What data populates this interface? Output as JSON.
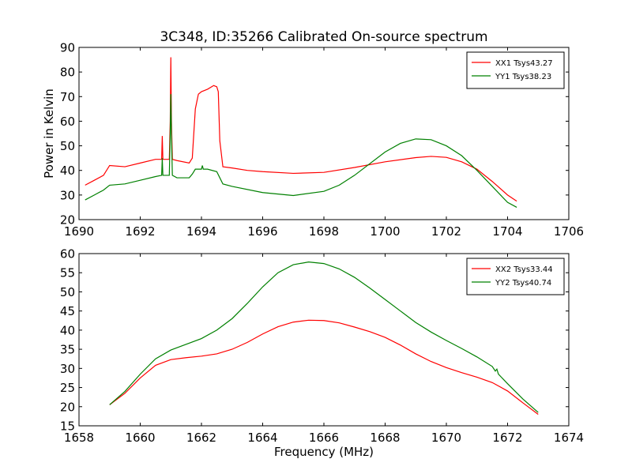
{
  "figure_title": "3C348, ID:35266 Calibrated On-source spectrum",
  "chart_data": [
    {
      "type": "line",
      "ylabel": "Power in Kelvin",
      "xlabel": "",
      "xlim": [
        1690,
        1706
      ],
      "ylim": [
        20,
        90
      ],
      "xticks": [
        1690,
        1692,
        1694,
        1696,
        1698,
        1700,
        1702,
        1704,
        1706
      ],
      "yticks": [
        20,
        30,
        40,
        50,
        60,
        70,
        80,
        90
      ],
      "legend_position": "top-right",
      "series": [
        {
          "name": "XX1 Tsys43.27",
          "color": "#ff0000",
          "x": [
            1690.2,
            1690.5,
            1690.8,
            1691.0,
            1691.5,
            1692.0,
            1692.5,
            1692.7,
            1692.72,
            1692.74,
            1692.8,
            1692.95,
            1692.98,
            1693.0,
            1693.02,
            1693.05,
            1693.2,
            1693.6,
            1693.7,
            1693.8,
            1693.9,
            1694.0,
            1694.2,
            1694.4,
            1694.5,
            1694.55,
            1694.6,
            1694.7,
            1695.0,
            1695.5,
            1696.0,
            1697.0,
            1698.0,
            1699.0,
            1700.0,
            1701.0,
            1701.5,
            1702.0,
            1702.5,
            1703.0,
            1703.5,
            1704.0,
            1704.3
          ],
          "y": [
            34,
            36,
            38,
            42,
            41.5,
            43,
            44.5,
            44.5,
            54,
            44.5,
            44.5,
            44.5,
            60,
            86,
            60,
            44.5,
            44,
            43,
            45,
            65,
            71,
            72,
            73,
            74.5,
            74,
            72,
            52,
            41.5,
            41,
            40,
            39.5,
            38.8,
            39.2,
            41.2,
            43.5,
            45.2,
            45.7,
            45.3,
            43.5,
            40.5,
            35.5,
            30,
            27.5
          ]
        },
        {
          "name": "YY1 Tsys38.23",
          "color": "#008000",
          "x": [
            1690.2,
            1690.5,
            1690.8,
            1691.0,
            1691.5,
            1692.0,
            1692.5,
            1692.7,
            1692.72,
            1692.74,
            1692.8,
            1692.95,
            1692.98,
            1693.0,
            1693.02,
            1693.05,
            1693.2,
            1693.6,
            1693.7,
            1693.8,
            1694.0,
            1694.03,
            1694.06,
            1694.2,
            1694.5,
            1694.6,
            1694.7,
            1695.0,
            1696.0,
            1697.0,
            1698.0,
            1698.5,
            1699.0,
            1700.0,
            1700.5,
            1701.0,
            1701.5,
            1702.0,
            1702.5,
            1703.0,
            1703.5,
            1704.0,
            1704.3
          ],
          "y": [
            28,
            30,
            32,
            34,
            34.5,
            36,
            37.5,
            38,
            45,
            38,
            38,
            38,
            55,
            71,
            55,
            38,
            37,
            37,
            38.5,
            40.5,
            40.5,
            42,
            40.5,
            40.5,
            39.5,
            37,
            34.5,
            33.5,
            31,
            29.8,
            31.5,
            34,
            38,
            47.5,
            51,
            52.8,
            52.5,
            50,
            46,
            40,
            33.5,
            27,
            25
          ]
        }
      ]
    },
    {
      "type": "line",
      "ylabel": "",
      "xlabel": "Frequency (MHz)",
      "xlim": [
        1658,
        1674
      ],
      "ylim": [
        15,
        60
      ],
      "xticks": [
        1658,
        1660,
        1662,
        1664,
        1666,
        1668,
        1670,
        1672,
        1674
      ],
      "yticks": [
        15,
        20,
        25,
        30,
        35,
        40,
        45,
        50,
        55,
        60
      ],
      "legend_position": "top-right",
      "series": [
        {
          "name": "XX2 Tsys33.44",
          "color": "#ff0000",
          "x": [
            1659.0,
            1659.5,
            1660.0,
            1660.5,
            1661.0,
            1661.5,
            1662.0,
            1662.5,
            1663.0,
            1663.5,
            1664.0,
            1664.5,
            1665.0,
            1665.5,
            1666.0,
            1666.5,
            1667.0,
            1667.5,
            1668.0,
            1668.5,
            1669.0,
            1669.5,
            1670.0,
            1670.5,
            1671.0,
            1671.5,
            1672.0,
            1672.5,
            1673.0
          ],
          "y": [
            20.5,
            23.5,
            27.5,
            30.8,
            32.3,
            32.8,
            33.2,
            33.8,
            35.0,
            36.8,
            39.0,
            40.9,
            42.1,
            42.6,
            42.5,
            41.9,
            40.8,
            39.6,
            38.1,
            36.1,
            33.8,
            31.8,
            30.2,
            28.9,
            27.7,
            26.3,
            24.1,
            21.0,
            18.0
          ]
        },
        {
          "name": "YY2 Tsys40.74",
          "color": "#008000",
          "x": [
            1659.0,
            1659.5,
            1660.0,
            1660.5,
            1661.0,
            1661.5,
            1662.0,
            1662.5,
            1663.0,
            1663.5,
            1664.0,
            1664.5,
            1665.0,
            1665.5,
            1666.0,
            1666.5,
            1667.0,
            1667.5,
            1668.0,
            1668.5,
            1669.0,
            1669.5,
            1670.0,
            1670.5,
            1671.0,
            1671.5,
            1671.6,
            1671.65,
            1671.7,
            1672.0,
            1672.5,
            1673.0
          ],
          "y": [
            20.5,
            24.0,
            28.5,
            32.5,
            34.8,
            36.3,
            37.8,
            40.0,
            43.0,
            47.0,
            51.3,
            55.0,
            57.1,
            57.8,
            57.4,
            56.0,
            53.8,
            51.0,
            48.0,
            45.0,
            42.0,
            39.5,
            37.3,
            35.2,
            33.0,
            30.5,
            29.3,
            29.8,
            28.5,
            26.0,
            22.0,
            18.5
          ]
        }
      ]
    }
  ]
}
